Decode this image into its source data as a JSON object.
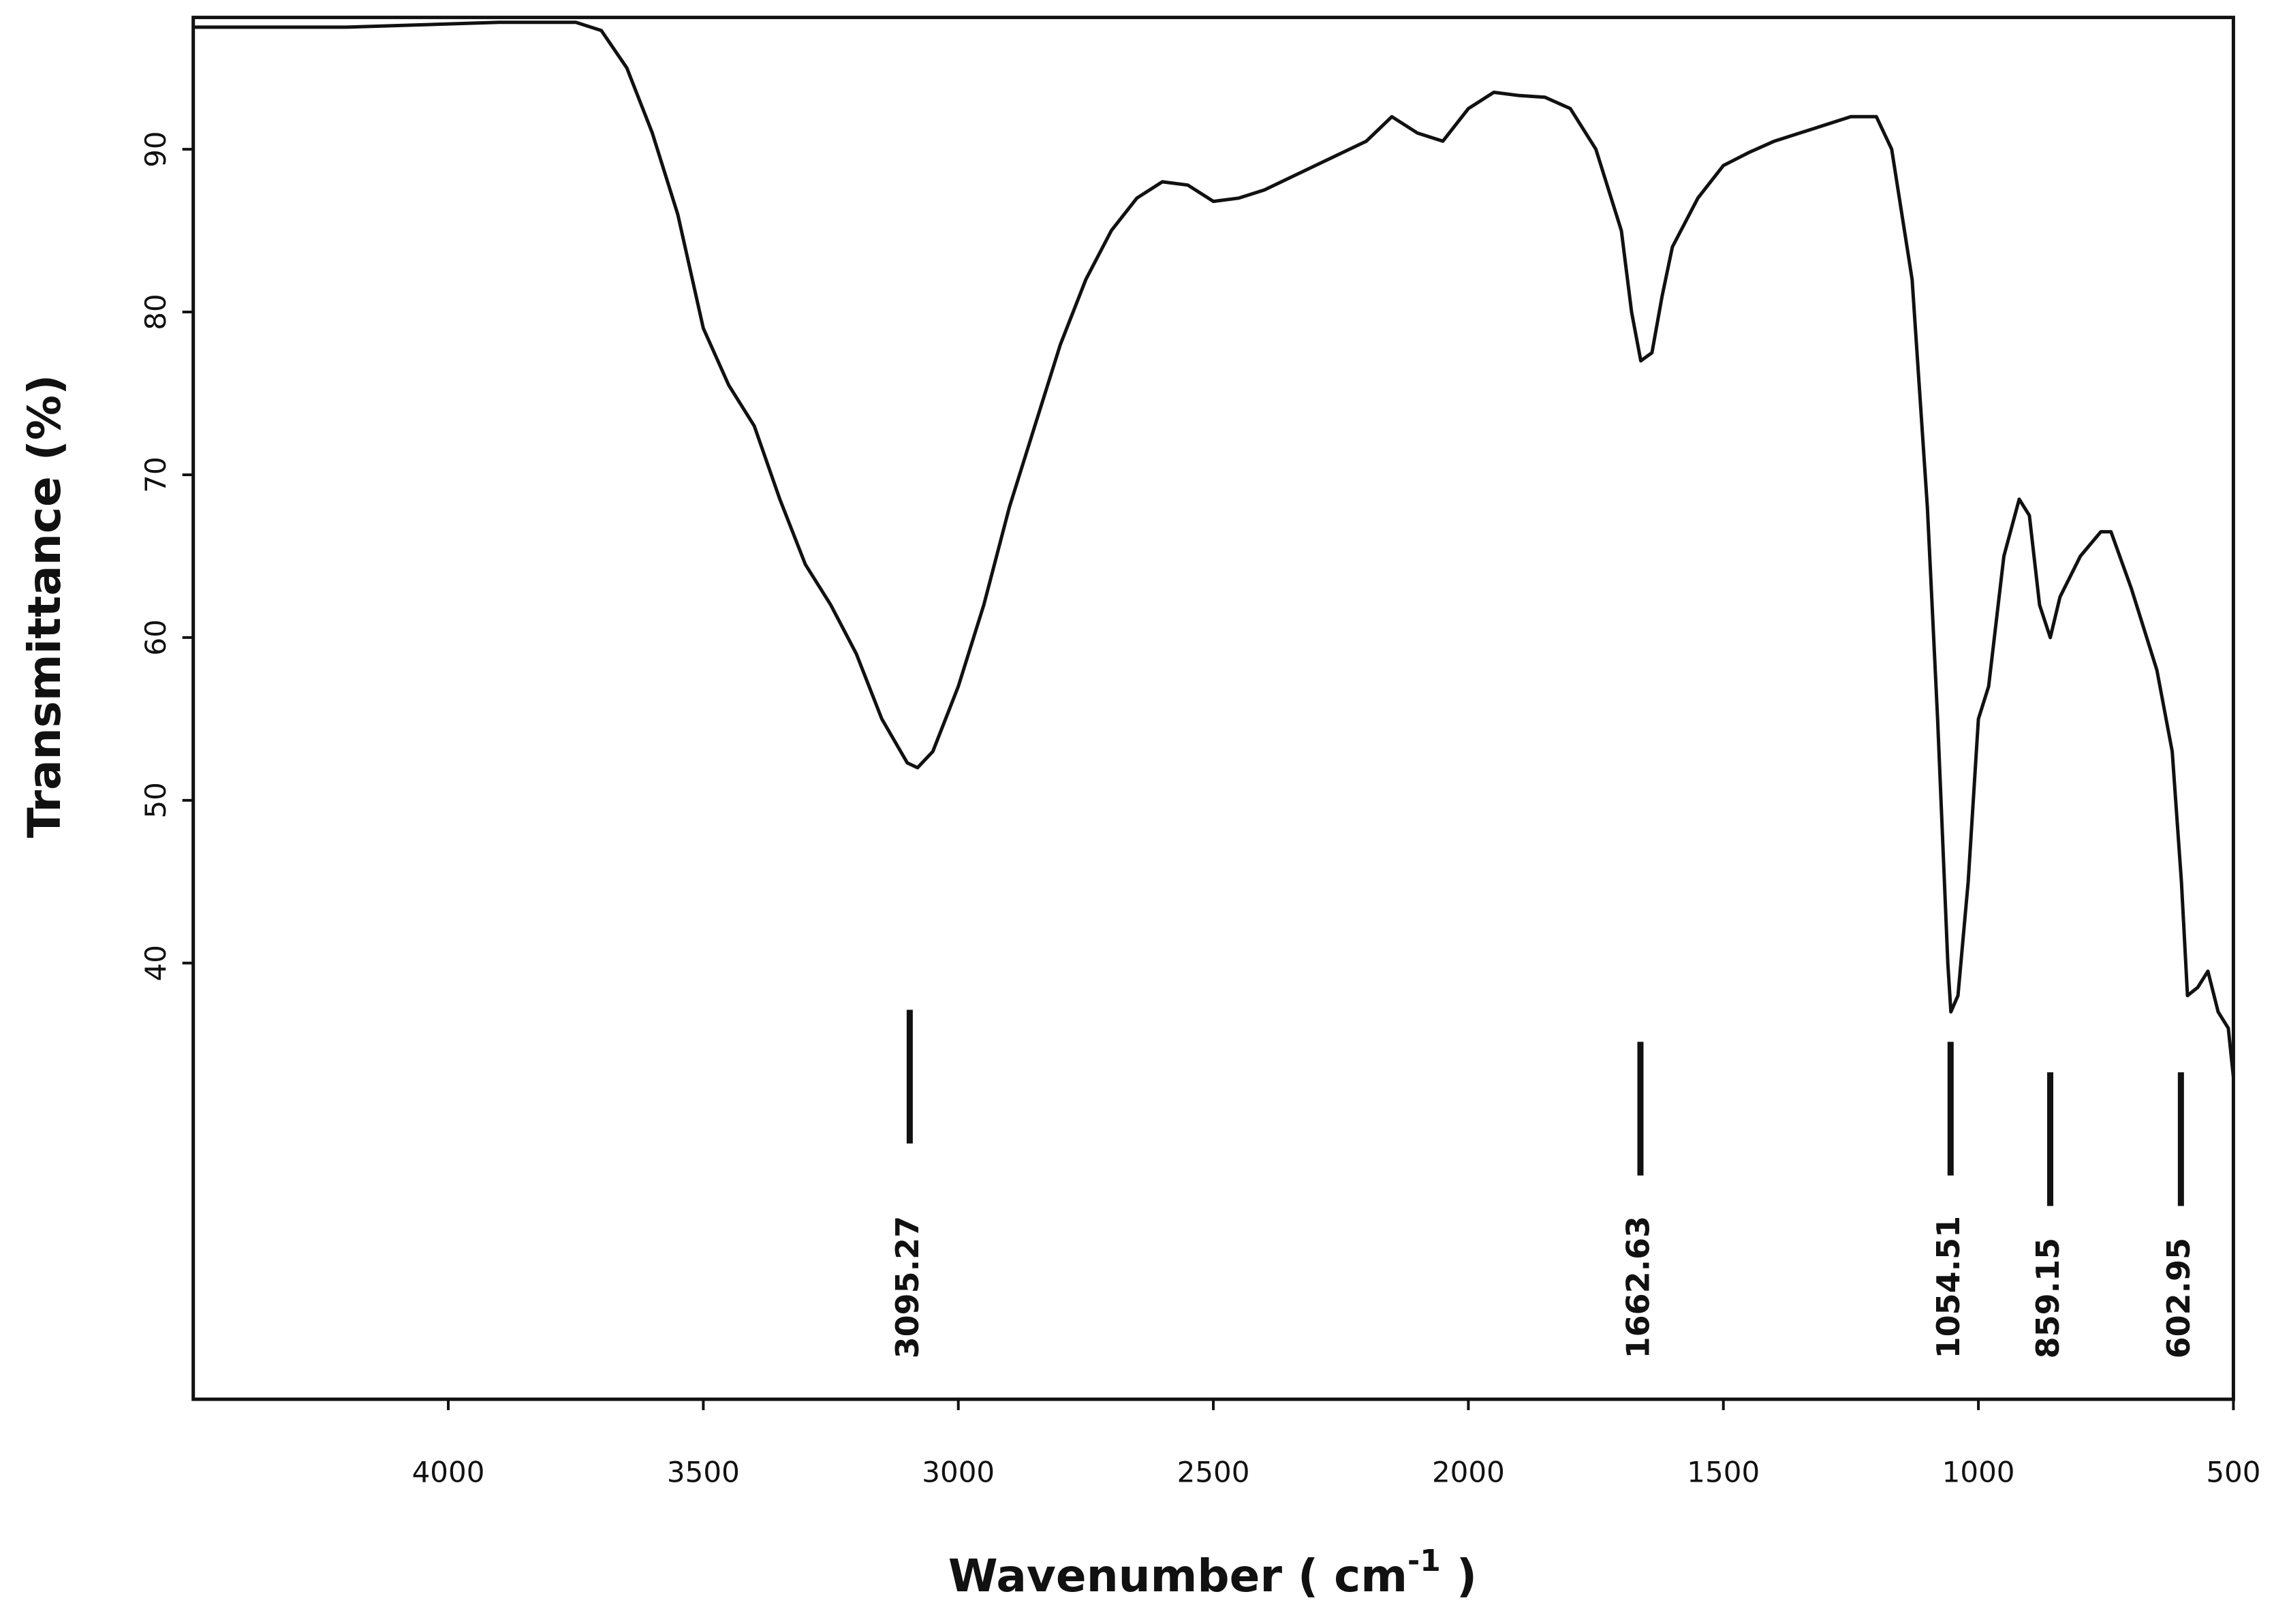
{
  "chart_data": {
    "type": "line",
    "x_label": "Wavenumber ( cm",
    "x_label_sup": "-1",
    "x_label_end": " )",
    "y_label": "Transmittance (%)",
    "xlim": [
      4500,
      500
    ],
    "ylim": [
      13.2,
      98.1
    ],
    "xticks": [
      4000,
      3500,
      3000,
      2500,
      2000,
      1500,
      1000,
      500
    ],
    "yticks": [
      40,
      50,
      60,
      70,
      80,
      90
    ],
    "series": [
      {
        "color": "#111111",
        "x": [
          4500,
          4200,
          3900,
          3750,
          3700,
          3650,
          3600,
          3550,
          3500,
          3450,
          3400,
          3350,
          3300,
          3250,
          3200,
          3150,
          3100,
          3080,
          3050,
          3000,
          2950,
          2900,
          2850,
          2800,
          2750,
          2700,
          2650,
          2600,
          2550,
          2500,
          2450,
          2400,
          2300,
          2200,
          2150,
          2100,
          2050,
          2000,
          1950,
          1900,
          1850,
          1800,
          1750,
          1700,
          1680,
          1662,
          1640,
          1620,
          1600,
          1550,
          1500,
          1450,
          1400,
          1350,
          1300,
          1250,
          1200,
          1170,
          1130,
          1100,
          1080,
          1060,
          1054,
          1040,
          1020,
          1000,
          980,
          950,
          920,
          900,
          880,
          859,
          840,
          800,
          760,
          740,
          700,
          650,
          620,
          602,
          590,
          570,
          550,
          530,
          510,
          500
        ],
        "values": [
          97.5,
          97.5,
          97.8,
          97.8,
          97.3,
          95,
          91,
          86,
          79,
          75.5,
          73,
          68.5,
          64.5,
          62,
          59,
          55,
          52.3,
          52,
          53,
          57,
          62,
          68,
          73,
          78,
          82,
          85,
          87,
          88,
          87.8,
          86.8,
          87,
          87.5,
          89,
          90.5,
          92,
          91,
          90.5,
          92.5,
          93.5,
          93.3,
          93.2,
          92.5,
          90,
          85,
          80,
          77,
          77.5,
          81,
          84,
          87,
          89,
          89.8,
          90.5,
          91,
          91.5,
          92,
          92,
          90,
          82,
          68,
          55,
          40,
          37,
          38,
          45,
          55,
          57,
          65,
          68.5,
          67.5,
          62,
          60,
          62.5,
          65,
          66.5,
          66.5,
          63,
          58,
          53,
          45,
          38,
          38.5,
          39.5,
          37,
          36,
          33
        ]
      }
    ],
    "peaks": [
      3095.27,
      1662.63,
      1054.51,
      859.15,
      602.95
    ]
  }
}
